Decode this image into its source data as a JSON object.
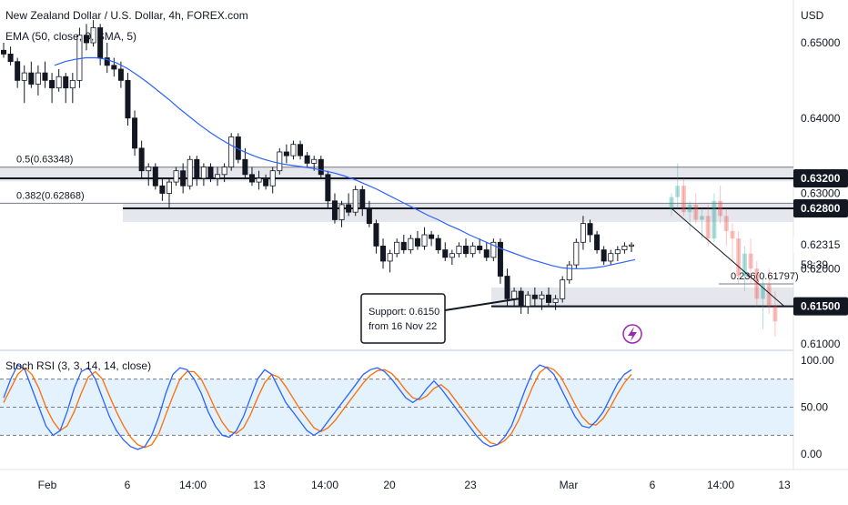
{
  "header": {
    "symbol_title": "New Zealand Dollar / U.S. Dollar, 4h, FOREX.com",
    "indicator_legend": "EMA (50, close, 0, SMA, 5)",
    "currency": "USD"
  },
  "price_axis": {
    "ticks": [
      "0.65000",
      "0.64000",
      "0.63000",
      "0.62000",
      "0.61000"
    ]
  },
  "price_badges": [
    {
      "label": "0.63200",
      "value": 0.632,
      "color": "#131722",
      "text_color": "#ffffff"
    },
    {
      "label": "0.62800",
      "value": 0.628,
      "color": "#131722",
      "text_color": "#ffffff"
    },
    {
      "label": "0.62315",
      "value": 0.62315,
      "color": "#ffffff",
      "text_color": "#131722"
    },
    {
      "label": "0.61500",
      "value": 0.615,
      "color": "#131722",
      "text_color": "#ffffff"
    }
  ],
  "countdown": "58:39",
  "fib_labels": [
    {
      "text": "0.5(0.63348)",
      "value": 0.63348
    },
    {
      "text": "0.382(0.62868)",
      "value": 0.62868
    },
    {
      "text": "0.236(0.61797)",
      "value": 0.61797
    }
  ],
  "annotation": {
    "line1": "Support: 0.6150",
    "line2": "from 16 Nov 22"
  },
  "rsi": {
    "title": "Stoch RSI (3, 3, 14, 14, close)",
    "ticks": [
      "100.00",
      "50.00",
      "0.00"
    ],
    "upper_band": 80,
    "lower_band": 20,
    "band_color": "#e3f2fd",
    "k_color": "#2962ff",
    "d_color": "#ff6d00"
  },
  "time_axis": {
    "labels": [
      "Feb",
      "6",
      "14:00",
      "13",
      "14:00",
      "20",
      "23",
      "Mar",
      "6",
      "14:00",
      "13"
    ]
  },
  "colors": {
    "ema": "#2962ff",
    "zone": "#d1d4dc",
    "flash_icon": "#9c27b0"
  },
  "chart_data": {
    "type": "candlestick",
    "title": "New Zealand Dollar / U.S. Dollar, 4h, FOREX.com",
    "y_unit": "USD",
    "ylim": [
      0.6085,
      0.6555
    ],
    "key_levels": [
      0.632,
      0.628,
      0.615
    ],
    "zones": [
      {
        "from": 0.6316,
        "to": 0.6336
      },
      {
        "from": 0.6262,
        "to": 0.6287
      },
      {
        "from": 0.6148,
        "to": 0.6175
      }
    ],
    "candles": [
      [
        0.649,
        0.65,
        0.648,
        0.6485
      ],
      [
        0.6485,
        0.6495,
        0.647,
        0.6475
      ],
      [
        0.6475,
        0.648,
        0.644,
        0.645
      ],
      [
        0.645,
        0.647,
        0.642,
        0.646
      ],
      [
        0.646,
        0.6475,
        0.644,
        0.6445
      ],
      [
        0.6445,
        0.647,
        0.643,
        0.646
      ],
      [
        0.646,
        0.6475,
        0.644,
        0.645
      ],
      [
        0.645,
        0.646,
        0.642,
        0.644
      ],
      [
        0.644,
        0.6465,
        0.6435,
        0.6455
      ],
      [
        0.6455,
        0.646,
        0.642,
        0.644
      ],
      [
        0.644,
        0.646,
        0.642,
        0.645
      ],
      [
        0.645,
        0.652,
        0.644,
        0.651
      ],
      [
        0.651,
        0.6525,
        0.649,
        0.65
      ],
      [
        0.65,
        0.653,
        0.6495,
        0.652
      ],
      [
        0.652,
        0.6525,
        0.647,
        0.648
      ],
      [
        0.648,
        0.65,
        0.646,
        0.647
      ],
      [
        0.647,
        0.648,
        0.6455,
        0.6465
      ],
      [
        0.6465,
        0.6475,
        0.644,
        0.645
      ],
      [
        0.645,
        0.646,
        0.639,
        0.64
      ],
      [
        0.64,
        0.641,
        0.635,
        0.636
      ],
      [
        0.636,
        0.637,
        0.632,
        0.633
      ],
      [
        0.633,
        0.634,
        0.631,
        0.6335
      ],
      [
        0.6335,
        0.634,
        0.6305,
        0.631
      ],
      [
        0.631,
        0.632,
        0.629,
        0.63
      ],
      [
        0.63,
        0.632,
        0.628,
        0.6315
      ],
      [
        0.6315,
        0.6335,
        0.631,
        0.633
      ],
      [
        0.633,
        0.634,
        0.63,
        0.631
      ],
      [
        0.631,
        0.635,
        0.6305,
        0.6345
      ],
      [
        0.6345,
        0.635,
        0.631,
        0.632
      ],
      [
        0.632,
        0.634,
        0.631,
        0.6335
      ],
      [
        0.6335,
        0.634,
        0.6315,
        0.632
      ],
      [
        0.632,
        0.6335,
        0.631,
        0.6325
      ],
      [
        0.6325,
        0.634,
        0.6315,
        0.6335
      ],
      [
        0.6335,
        0.638,
        0.633,
        0.6375
      ],
      [
        0.6375,
        0.638,
        0.634,
        0.6345
      ],
      [
        0.6345,
        0.636,
        0.632,
        0.6325
      ],
      [
        0.6325,
        0.6335,
        0.631,
        0.6315
      ],
      [
        0.6315,
        0.633,
        0.6305,
        0.632
      ],
      [
        0.632,
        0.6325,
        0.6305,
        0.631
      ],
      [
        0.631,
        0.6335,
        0.63,
        0.633
      ],
      [
        0.633,
        0.636,
        0.6325,
        0.6355
      ],
      [
        0.6355,
        0.6365,
        0.634,
        0.635
      ],
      [
        0.635,
        0.637,
        0.6345,
        0.6365
      ],
      [
        0.6365,
        0.637,
        0.6345,
        0.635
      ],
      [
        0.635,
        0.6355,
        0.6335,
        0.634
      ],
      [
        0.634,
        0.635,
        0.633,
        0.6345
      ],
      [
        0.6345,
        0.635,
        0.632,
        0.6325
      ],
      [
        0.6325,
        0.633,
        0.628,
        0.629
      ],
      [
        0.629,
        0.63,
        0.626,
        0.6265
      ],
      [
        0.6265,
        0.629,
        0.6255,
        0.6285
      ],
      [
        0.6285,
        0.63,
        0.627,
        0.6275
      ],
      [
        0.6275,
        0.631,
        0.627,
        0.6305
      ],
      [
        0.6305,
        0.631,
        0.627,
        0.628
      ],
      [
        0.628,
        0.629,
        0.6255,
        0.626
      ],
      [
        0.626,
        0.6265,
        0.622,
        0.623
      ],
      [
        0.623,
        0.624,
        0.62,
        0.621
      ],
      [
        0.621,
        0.6225,
        0.6195,
        0.622
      ],
      [
        0.622,
        0.624,
        0.6215,
        0.6235
      ],
      [
        0.6235,
        0.6245,
        0.622,
        0.6225
      ],
      [
        0.6225,
        0.6245,
        0.622,
        0.624
      ],
      [
        0.624,
        0.625,
        0.6225,
        0.623
      ],
      [
        0.623,
        0.6255,
        0.6225,
        0.6245
      ],
      [
        0.6245,
        0.625,
        0.623,
        0.624
      ],
      [
        0.624,
        0.6245,
        0.622,
        0.6225
      ],
      [
        0.6225,
        0.6235,
        0.621,
        0.6215
      ],
      [
        0.6215,
        0.6225,
        0.6205,
        0.622
      ],
      [
        0.622,
        0.6235,
        0.6215,
        0.623
      ],
      [
        0.623,
        0.624,
        0.6215,
        0.622
      ],
      [
        0.622,
        0.6235,
        0.6215,
        0.623
      ],
      [
        0.623,
        0.624,
        0.622,
        0.6225
      ],
      [
        0.6225,
        0.6235,
        0.621,
        0.6215
      ],
      [
        0.6215,
        0.624,
        0.621,
        0.6235
      ],
      [
        0.6235,
        0.624,
        0.618,
        0.619
      ],
      [
        0.619,
        0.62,
        0.615,
        0.616
      ],
      [
        0.616,
        0.6175,
        0.615,
        0.617
      ],
      [
        0.617,
        0.6175,
        0.614,
        0.615
      ],
      [
        0.615,
        0.617,
        0.614,
        0.6165
      ],
      [
        0.6165,
        0.6175,
        0.615,
        0.616
      ],
      [
        0.616,
        0.617,
        0.6145,
        0.6165
      ],
      [
        0.6165,
        0.6175,
        0.615,
        0.6155
      ],
      [
        0.6155,
        0.6165,
        0.6145,
        0.616
      ],
      [
        0.616,
        0.619,
        0.6155,
        0.6185
      ],
      [
        0.6185,
        0.621,
        0.618,
        0.6205
      ],
      [
        0.6205,
        0.624,
        0.62,
        0.6235
      ],
      [
        0.6235,
        0.627,
        0.6225,
        0.626
      ],
      [
        0.626,
        0.6265,
        0.6235,
        0.6245
      ],
      [
        0.6245,
        0.625,
        0.622,
        0.6225
      ],
      [
        0.6225,
        0.623,
        0.6205,
        0.621
      ],
      [
        0.621,
        0.6225,
        0.6205,
        0.622
      ],
      [
        0.622,
        0.623,
        0.621,
        0.6225
      ],
      [
        0.6225,
        0.6235,
        0.622,
        0.623
      ],
      [
        0.623,
        0.6235,
        0.6222,
        0.62315
      ]
    ],
    "ema": [
      0.647,
      0.6475,
      0.6478,
      0.648,
      0.648,
      0.6478,
      0.6473,
      0.6466,
      0.6457,
      0.6447,
      0.6436,
      0.6425,
      0.6413,
      0.6402,
      0.6391,
      0.6381,
      0.6372,
      0.6364,
      0.6357,
      0.6351,
      0.6346,
      0.6342,
      0.6339,
      0.6337,
      0.6335,
      0.6333,
      0.633,
      0.6327,
      0.6323,
      0.6318,
      0.6312,
      0.6306,
      0.6299,
      0.6292,
      0.6285,
      0.6278,
      0.6271,
      0.6265,
      0.6258,
      0.6252,
      0.6245,
      0.6239,
      0.6233,
      0.6227,
      0.6222,
      0.6217,
      0.6212,
      0.6208,
      0.6204,
      0.6201,
      0.62,
      0.62,
      0.6201,
      0.6203,
      0.6206,
      0.6209,
      0.6212
    ],
    "projection": [
      [
        0.628,
        0.63,
        0.627,
        0.6295
      ],
      [
        0.6295,
        0.634,
        0.628,
        0.631
      ],
      [
        0.631,
        0.632,
        0.627,
        0.6275
      ],
      [
        0.6275,
        0.629,
        0.625,
        0.6285
      ],
      [
        0.6285,
        0.63,
        0.626,
        0.6265
      ],
      [
        0.6265,
        0.628,
        0.624,
        0.627
      ],
      [
        0.627,
        0.6285,
        0.623,
        0.624
      ],
      [
        0.624,
        0.63,
        0.6235,
        0.629
      ],
      [
        0.629,
        0.631,
        0.626,
        0.627
      ],
      [
        0.627,
        0.628,
        0.623,
        0.625
      ],
      [
        0.625,
        0.626,
        0.621,
        0.624
      ],
      [
        0.624,
        0.625,
        0.618,
        0.619
      ],
      [
        0.619,
        0.623,
        0.617,
        0.622
      ],
      [
        0.622,
        0.624,
        0.618,
        0.62
      ],
      [
        0.62,
        0.621,
        0.615,
        0.616
      ],
      [
        0.616,
        0.619,
        0.612,
        0.618
      ],
      [
        0.618,
        0.62,
        0.614,
        0.615
      ],
      [
        0.615,
        0.617,
        0.611,
        0.613
      ]
    ],
    "stoch_k": [
      60,
      80,
      95,
      90,
      70,
      50,
      30,
      20,
      25,
      45,
      70,
      88,
      92,
      80,
      60,
      40,
      25,
      15,
      8,
      5,
      8,
      20,
      40,
      65,
      85,
      92,
      90,
      80,
      65,
      45,
      30,
      20,
      18,
      25,
      40,
      60,
      80,
      90,
      85,
      70,
      55,
      45,
      35,
      25,
      20,
      25,
      35,
      45,
      55,
      65,
      75,
      85,
      90,
      92,
      88,
      80,
      70,
      60,
      55,
      60,
      70,
      78,
      70,
      60,
      50,
      40,
      30,
      20,
      12,
      8,
      10,
      18,
      30,
      50,
      70,
      88,
      95,
      92,
      85,
      70,
      55,
      40,
      30,
      28,
      35,
      45,
      60,
      75,
      85,
      90
    ],
    "stoch_d": [
      55,
      70,
      85,
      92,
      85,
      70,
      50,
      35,
      25,
      30,
      45,
      65,
      82,
      88,
      80,
      62,
      45,
      30,
      18,
      10,
      7,
      10,
      22,
      42,
      62,
      80,
      88,
      88,
      80,
      65,
      48,
      34,
      24,
      22,
      28,
      42,
      60,
      76,
      85,
      82,
      72,
      60,
      48,
      38,
      28,
      24,
      28,
      36,
      46,
      56,
      66,
      76,
      84,
      89,
      90,
      86,
      78,
      68,
      60,
      58,
      62,
      70,
      74,
      68,
      58,
      48,
      38,
      28,
      19,
      12,
      10,
      14,
      22,
      36,
      54,
      72,
      87,
      93,
      90,
      82,
      68,
      53,
      40,
      32,
      31,
      38,
      50,
      64,
      76,
      85
    ]
  }
}
